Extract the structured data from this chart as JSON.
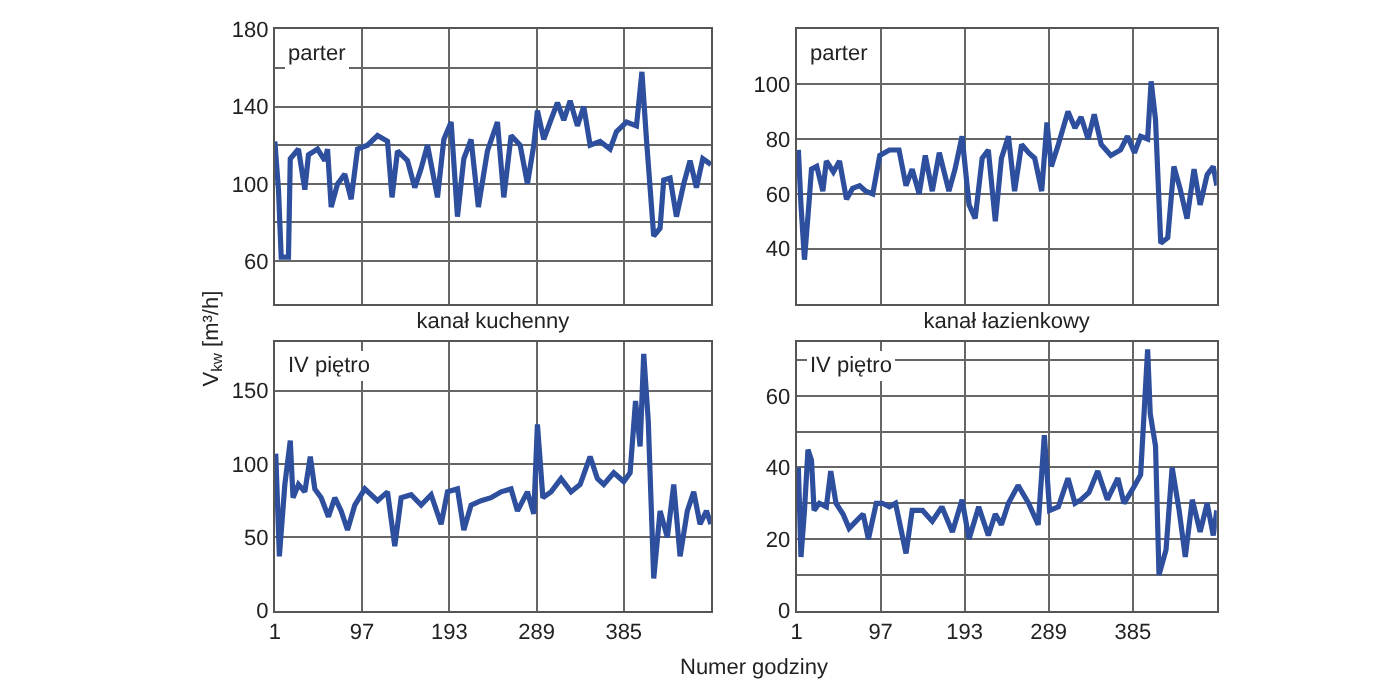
{
  "chart_data": [
    {
      "type": "line",
      "xlabel": "kanał kuchenny",
      "annotations": [
        "parter"
      ],
      "xlim": [
        1,
        481
      ],
      "xticks": [
        {
          "value": 1,
          "label": null
        },
        {
          "value": 97,
          "label": null
        },
        {
          "value": 193,
          "label": null
        },
        {
          "value": 289,
          "label": null
        },
        {
          "value": 385,
          "label": null
        }
      ],
      "ylim": [
        38,
        180
      ],
      "yticks": [
        60,
        {
          "value": 80,
          "label": null
        },
        100,
        {
          "value": 120,
          "label": null
        },
        140,
        {
          "value": 160,
          "label": null
        },
        180
      ],
      "tick_labels": "y",
      "grid": true,
      "series": [
        {
          "color": "#2d4f9e",
          "x": [
            1,
            5,
            8,
            16,
            18,
            27,
            34,
            38,
            48,
            56,
            59,
            63,
            70,
            78,
            85,
            92,
            103,
            114,
            125,
            130,
            136,
            147,
            155,
            162,
            169,
            180,
            187,
            195,
            202,
            209,
            217,
            225,
            235,
            246,
            253,
            261,
            271,
            279,
            286,
            290,
            297,
            304,
            312,
            319,
            326,
            334,
            341,
            348,
            359,
            370,
            377,
            388,
            399,
            405,
            410,
            418,
            425,
            429,
            436,
            443,
            451,
            458,
            465,
            472,
            481
          ],
          "values": [
            122,
            97,
            62,
            62,
            113,
            118,
            97,
            115,
            118,
            112,
            118,
            88,
            100,
            105,
            92,
            118,
            120,
            125,
            122,
            93,
            117,
            112,
            98,
            108,
            120,
            93,
            123,
            132,
            83,
            113,
            123,
            88,
            117,
            132,
            93,
            125,
            120,
            100,
            120,
            138,
            123,
            132,
            142,
            133,
            143,
            130,
            140,
            120,
            122,
            118,
            127,
            132,
            130,
            158,
            123,
            73,
            77,
            102,
            103,
            83,
            100,
            112,
            98,
            113,
            110
          ]
        }
      ]
    },
    {
      "type": "line",
      "xlabel": "kanał łazienkowy",
      "annotations": [
        "parter"
      ],
      "xlim": [
        1,
        481
      ],
      "xticks": [
        {
          "value": 1,
          "label": null
        },
        {
          "value": 97,
          "label": null
        },
        {
          "value": 193,
          "label": null
        },
        {
          "value": 289,
          "label": null
        },
        {
          "value": 385,
          "label": null
        }
      ],
      "ylim": [
        20,
        120
      ],
      "yticks": [
        40,
        60,
        80,
        100
      ],
      "tick_labels": "y",
      "grid": true,
      "series": [
        {
          "color": "#2d4f9e",
          "x": [
            3,
            6,
            10,
            15,
            18,
            24,
            31,
            35,
            43,
            50,
            58,
            65,
            73,
            80,
            88,
            96,
            107,
            118,
            126,
            133,
            141,
            148,
            156,
            164,
            175,
            182,
            190,
            198,
            205,
            213,
            220,
            228,
            235,
            243,
            250,
            258,
            266,
            273,
            281,
            287,
            292,
            300,
            311,
            319,
            326,
            334,
            341,
            349,
            360,
            371,
            379,
            387,
            394,
            402,
            406,
            411,
            417,
            425,
            432,
            439,
            447,
            455,
            462,
            470,
            477,
            481
          ],
          "values": [
            76,
            56,
            36,
            56,
            69,
            70,
            61,
            72,
            68,
            72,
            58,
            62,
            63,
            61,
            60,
            74,
            76,
            76,
            63,
            69,
            60,
            74,
            61,
            75,
            61,
            69,
            81,
            56,
            51,
            73,
            76,
            50,
            73,
            81,
            61,
            78,
            75,
            73,
            61,
            86,
            70,
            78,
            90,
            84,
            88,
            80,
            89,
            78,
            74,
            76,
            81,
            75,
            81,
            80,
            101,
            87,
            42,
            44,
            70,
            62,
            51,
            69,
            56,
            67,
            70,
            63
          ]
        }
      ]
    },
    {
      "type": "line",
      "xlabel": "Numer godziny",
      "ylabel": "V$_{kw}$ [m³/h]",
      "annotations": [
        "IV piętro"
      ],
      "xlim": [
        1,
        481
      ],
      "xticks": [
        1,
        97,
        193,
        289,
        385
      ],
      "ylim": [
        0,
        183
      ],
      "yticks": [
        0,
        50,
        100,
        150
      ],
      "grid": true,
      "series": [
        {
          "color": "#2d4f9e",
          "x": [
            2,
            6,
            12,
            18,
            21,
            27,
            34,
            40,
            45,
            52,
            60,
            67,
            74,
            81,
            89,
            100,
            114,
            125,
            133,
            140,
            151,
            162,
            173,
            184,
            191,
            202,
            209,
            217,
            228,
            239,
            250,
            261,
            268,
            279,
            286,
            290,
            296,
            305,
            316,
            327,
            337,
            348,
            356,
            363,
            374,
            385,
            392,
            398,
            403,
            407,
            412,
            418,
            425,
            433,
            440,
            447,
            455,
            462,
            469,
            476,
            481
          ],
          "values": [
            107,
            37,
            86,
            116,
            77,
            86,
            81,
            105,
            83,
            77,
            64,
            77,
            68,
            55,
            72,
            83,
            75,
            81,
            44,
            77,
            79,
            72,
            79,
            59,
            81,
            83,
            55,
            72,
            75,
            77,
            81,
            83,
            68,
            81,
            66,
            127,
            77,
            81,
            90,
            81,
            86,
            105,
            90,
            86,
            94,
            88,
            94,
            143,
            112,
            175,
            129,
            22,
            68,
            50,
            86,
            37,
            68,
            81,
            59,
            68,
            59
          ]
        }
      ]
    },
    {
      "type": "line",
      "annotations": [
        "IV piętro"
      ],
      "xlim": [
        1,
        481
      ],
      "xticks": [
        1,
        97,
        193,
        289,
        385
      ],
      "ylim": [
        0,
        75
      ],
      "yticks": [
        0,
        {
          "value": 10,
          "label": null
        },
        20,
        {
          "value": 30,
          "label": null
        },
        40,
        {
          "value": 50,
          "label": null
        },
        60,
        {
          "value": 70,
          "label": null
        }
      ],
      "grid": true,
      "series": [
        {
          "color": "#2d4f9e",
          "x": [
            3,
            6,
            10,
            14,
            18,
            21,
            27,
            35,
            40,
            46,
            54,
            61,
            69,
            77,
            83,
            92,
            99,
            107,
            114,
            126,
            133,
            145,
            156,
            167,
            179,
            190,
            198,
            209,
            220,
            228,
            235,
            243,
            254,
            266,
            277,
            284,
            290,
            300,
            311,
            319,
            326,
            335,
            345,
            356,
            368,
            375,
            385,
            394,
            402,
            405,
            411,
            415,
            423,
            430,
            438,
            445,
            453,
            462,
            470,
            477,
            481
          ],
          "values": [
            40,
            15,
            28,
            45,
            42,
            28,
            30,
            29,
            39,
            30,
            27,
            23,
            25,
            27,
            20,
            30,
            30,
            29,
            30,
            16,
            28,
            28,
            25,
            29,
            22,
            31,
            20,
            29,
            21,
            27,
            24,
            30,
            35,
            30,
            24,
            49,
            28,
            29,
            37,
            30,
            31,
            33,
            39,
            31,
            37,
            30,
            34,
            38,
            73,
            55,
            46,
            10,
            17,
            40,
            28,
            15,
            31,
            22,
            30,
            21,
            28
          ]
        }
      ]
    }
  ]
}
